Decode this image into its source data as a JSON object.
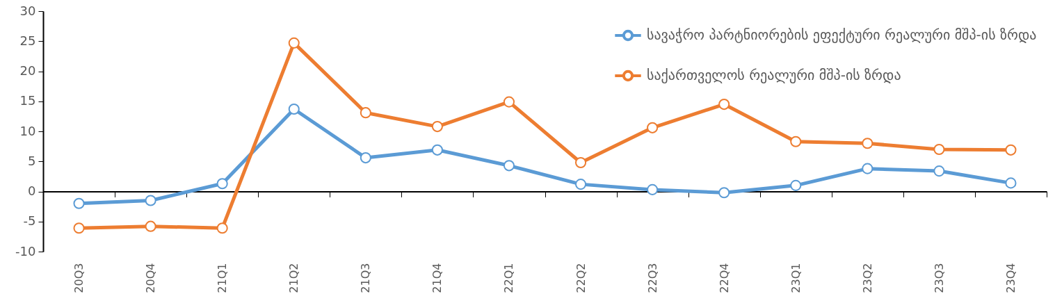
{
  "chart_data": {
    "type": "line",
    "categories": [
      "20Q3",
      "20Q4",
      "21Q1",
      "21Q2",
      "21Q3",
      "21Q4",
      "22Q1",
      "22Q2",
      "22Q3",
      "22Q4",
      "23Q1",
      "23Q2",
      "23Q3",
      "23Q4"
    ],
    "series": [
      {
        "name": "სავაჭრო პარტნიორების ეფექტური რეალური მშპ-ის ზრდა",
        "color": "#5b9bd5",
        "values": [
          -2.0,
          -1.5,
          1.3,
          13.7,
          5.6,
          6.9,
          4.3,
          1.2,
          0.3,
          -0.2,
          1.0,
          3.8,
          3.4,
          1.4
        ]
      },
      {
        "name": "საქართველოს რეალური მშპ-ის ზრდა",
        "color": "#ed7d31",
        "values": [
          -6.1,
          -5.8,
          -6.1,
          24.7,
          13.1,
          10.8,
          14.9,
          4.8,
          10.6,
          14.5,
          8.3,
          8.0,
          7.0,
          6.9
        ]
      }
    ],
    "ylim": [
      -10,
      30
    ],
    "yticks": [
      -10,
      -5,
      0,
      5,
      10,
      15,
      20,
      25,
      30
    ],
    "marker": "circle",
    "line_style": "solid",
    "legend": "top right"
  }
}
